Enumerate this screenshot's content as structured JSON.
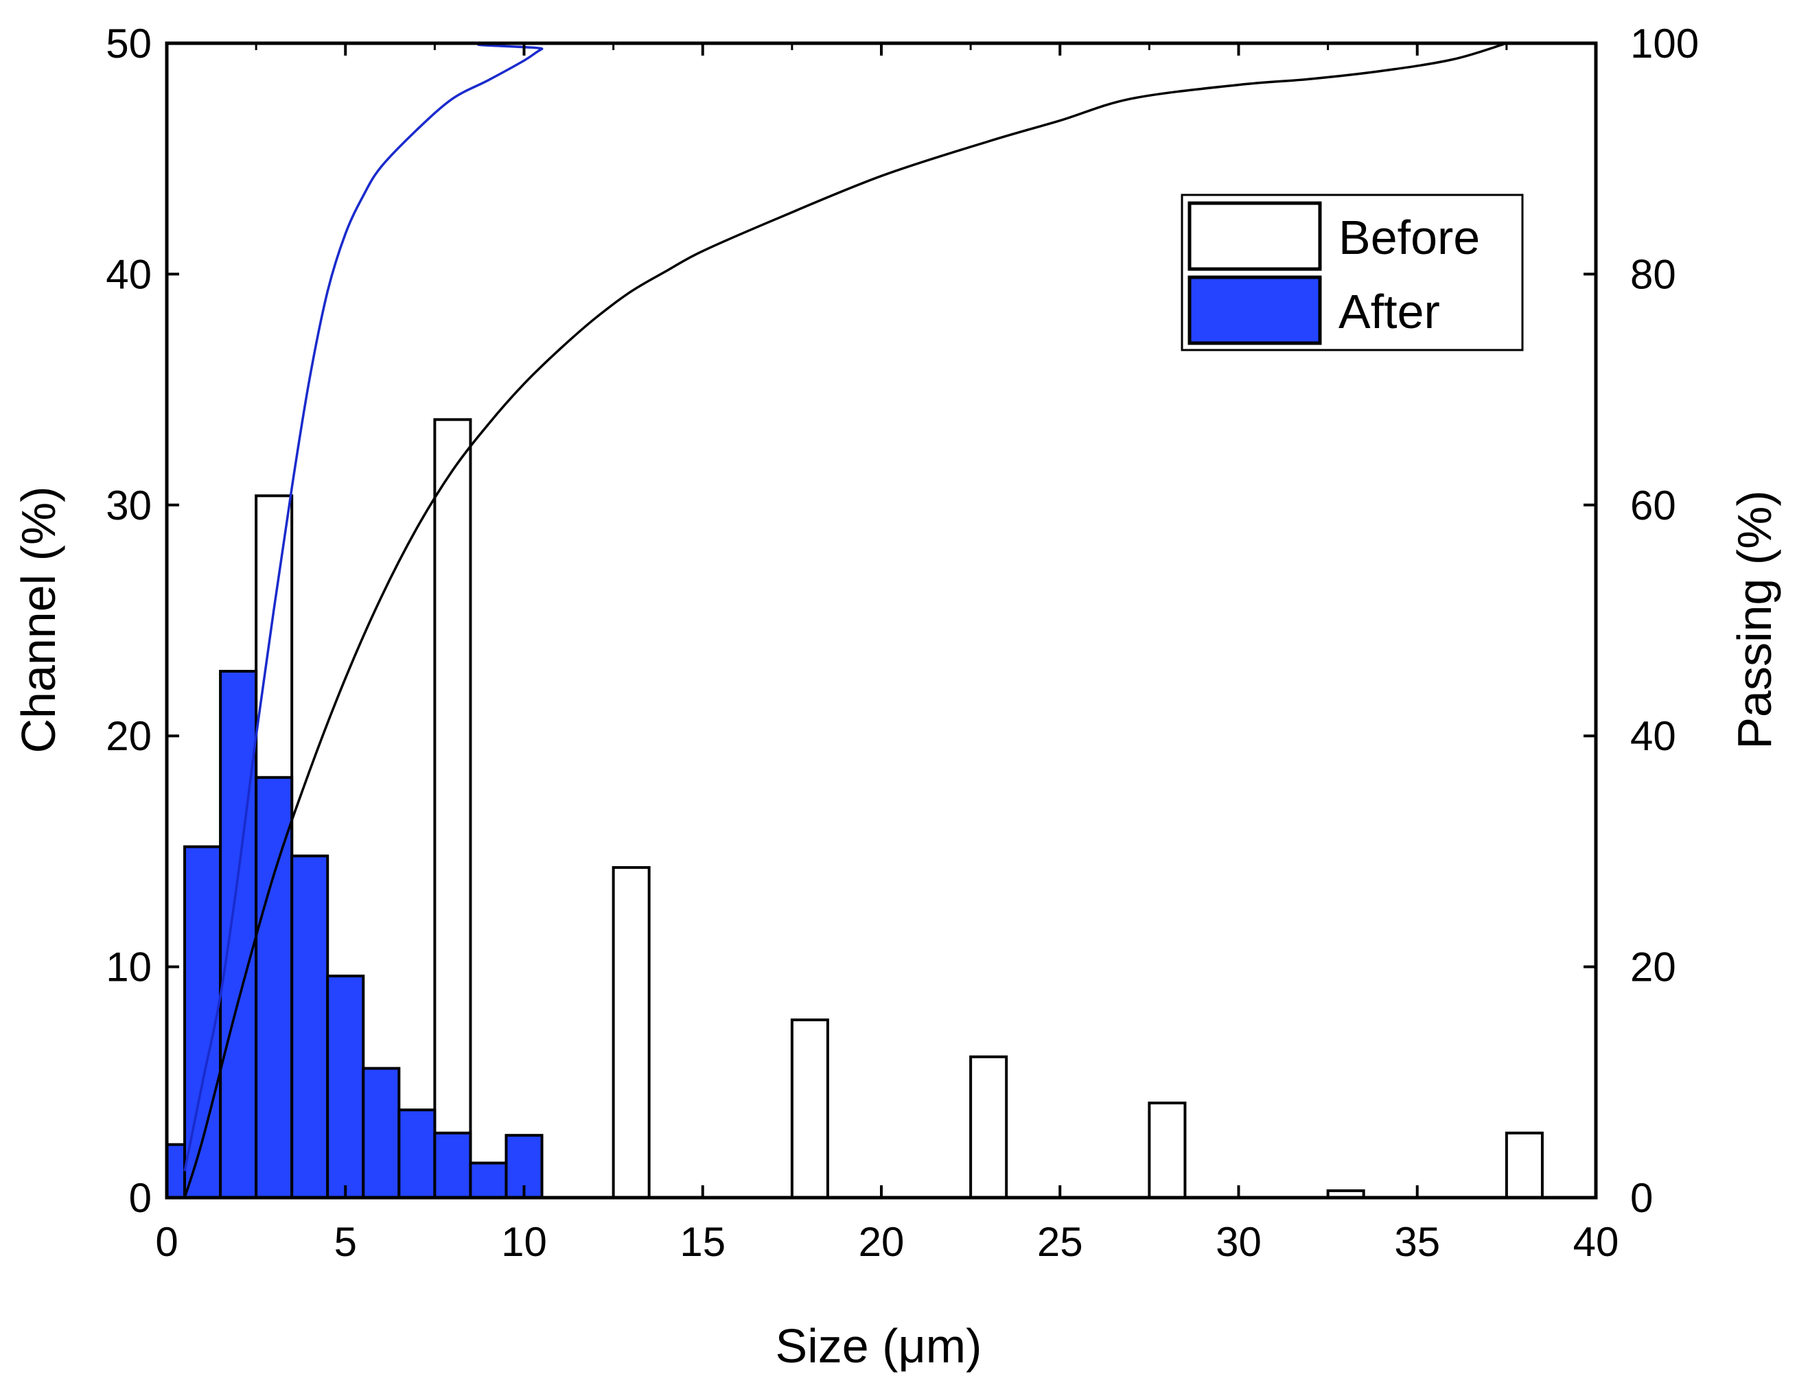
{
  "chart_data": {
    "type": "bar",
    "title": "",
    "xlabel": "Size (μm)",
    "ylabel": "Channel (%)",
    "y2label": "Passing (%)",
    "xlim": [
      0,
      40
    ],
    "ylim": [
      0,
      50
    ],
    "y2lim": [
      0,
      100
    ],
    "xticks": [
      "0",
      "5",
      "10",
      "15",
      "20",
      "25",
      "30",
      "35",
      "40"
    ],
    "yticks": [
      "0",
      "10",
      "20",
      "30",
      "40",
      "50"
    ],
    "y2ticks": [
      "0",
      "20",
      "40",
      "60",
      "80",
      "100"
    ],
    "legend": [
      {
        "label": "Before",
        "fill": "#ffffff"
      },
      {
        "label": "After",
        "fill": "#2444ff"
      }
    ],
    "legend_position": "top-right",
    "series": [
      {
        "name": "Before",
        "kind": "histogram",
        "color": "#ffffff",
        "bars": [
          {
            "x0": 2.5,
            "x1": 3.5,
            "value": 30.4
          },
          {
            "x0": 7.5,
            "x1": 8.5,
            "value": 33.7
          },
          {
            "x0": 12.5,
            "x1": 13.5,
            "value": 14.3
          },
          {
            "x0": 17.5,
            "x1": 18.5,
            "value": 7.7
          },
          {
            "x0": 22.5,
            "x1": 23.5,
            "value": 6.1
          },
          {
            "x0": 27.5,
            "x1": 28.5,
            "value": 4.1
          },
          {
            "x0": 32.5,
            "x1": 33.5,
            "value": 0.3
          },
          {
            "x0": 37.5,
            "x1": 38.5,
            "value": 2.8
          }
        ]
      },
      {
        "name": "After",
        "kind": "histogram",
        "color": "#2444ff",
        "bars": [
          {
            "x0": 0.0,
            "x1": 0.5,
            "value": 2.3
          },
          {
            "x0": 0.5,
            "x1": 1.5,
            "value": 15.2
          },
          {
            "x0": 1.5,
            "x1": 2.5,
            "value": 22.8
          },
          {
            "x0": 2.5,
            "x1": 3.5,
            "value": 18.2
          },
          {
            "x0": 3.5,
            "x1": 4.5,
            "value": 14.8
          },
          {
            "x0": 4.5,
            "x1": 5.5,
            "value": 9.6
          },
          {
            "x0": 5.5,
            "x1": 6.5,
            "value": 5.6
          },
          {
            "x0": 6.5,
            "x1": 7.5,
            "value": 3.8
          },
          {
            "x0": 7.5,
            "x1": 8.5,
            "value": 2.8
          },
          {
            "x0": 8.5,
            "x1": 9.5,
            "value": 1.5
          },
          {
            "x0": 9.5,
            "x1": 10.5,
            "value": 2.7
          }
        ]
      },
      {
        "name": "Before passing",
        "kind": "line",
        "axis": "right",
        "color": "#000000",
        "x": [
          0.5,
          1,
          2,
          3,
          4,
          5,
          6,
          7,
          8,
          9,
          10,
          11,
          12,
          13,
          14,
          15,
          17,
          20,
          23,
          25,
          27,
          30,
          32,
          34,
          36,
          37.5
        ],
        "y": [
          0,
          5,
          17,
          28,
          37,
          45,
          52,
          58,
          63,
          67,
          70.5,
          73.5,
          76.2,
          78.5,
          80.3,
          82,
          84.7,
          88.5,
          91.5,
          93.3,
          95.2,
          96.4,
          96.9,
          97.6,
          98.6,
          100
        ]
      },
      {
        "name": "After passing",
        "kind": "line",
        "axis": "right",
        "color": "#1a2bcc",
        "x": [
          0.5,
          1,
          1.5,
          2,
          2.5,
          3,
          3.5,
          4,
          4.5,
          5,
          5.5,
          6,
          7,
          8,
          9,
          10,
          10.5,
          11,
          40
        ],
        "y": [
          2.3,
          10,
          17.5,
          28,
          40,
          51,
          61.5,
          71,
          78.5,
          83.5,
          86.8,
          89.3,
          92.5,
          95.2,
          96.8,
          98.5,
          99.5,
          100,
          100
        ]
      }
    ]
  }
}
